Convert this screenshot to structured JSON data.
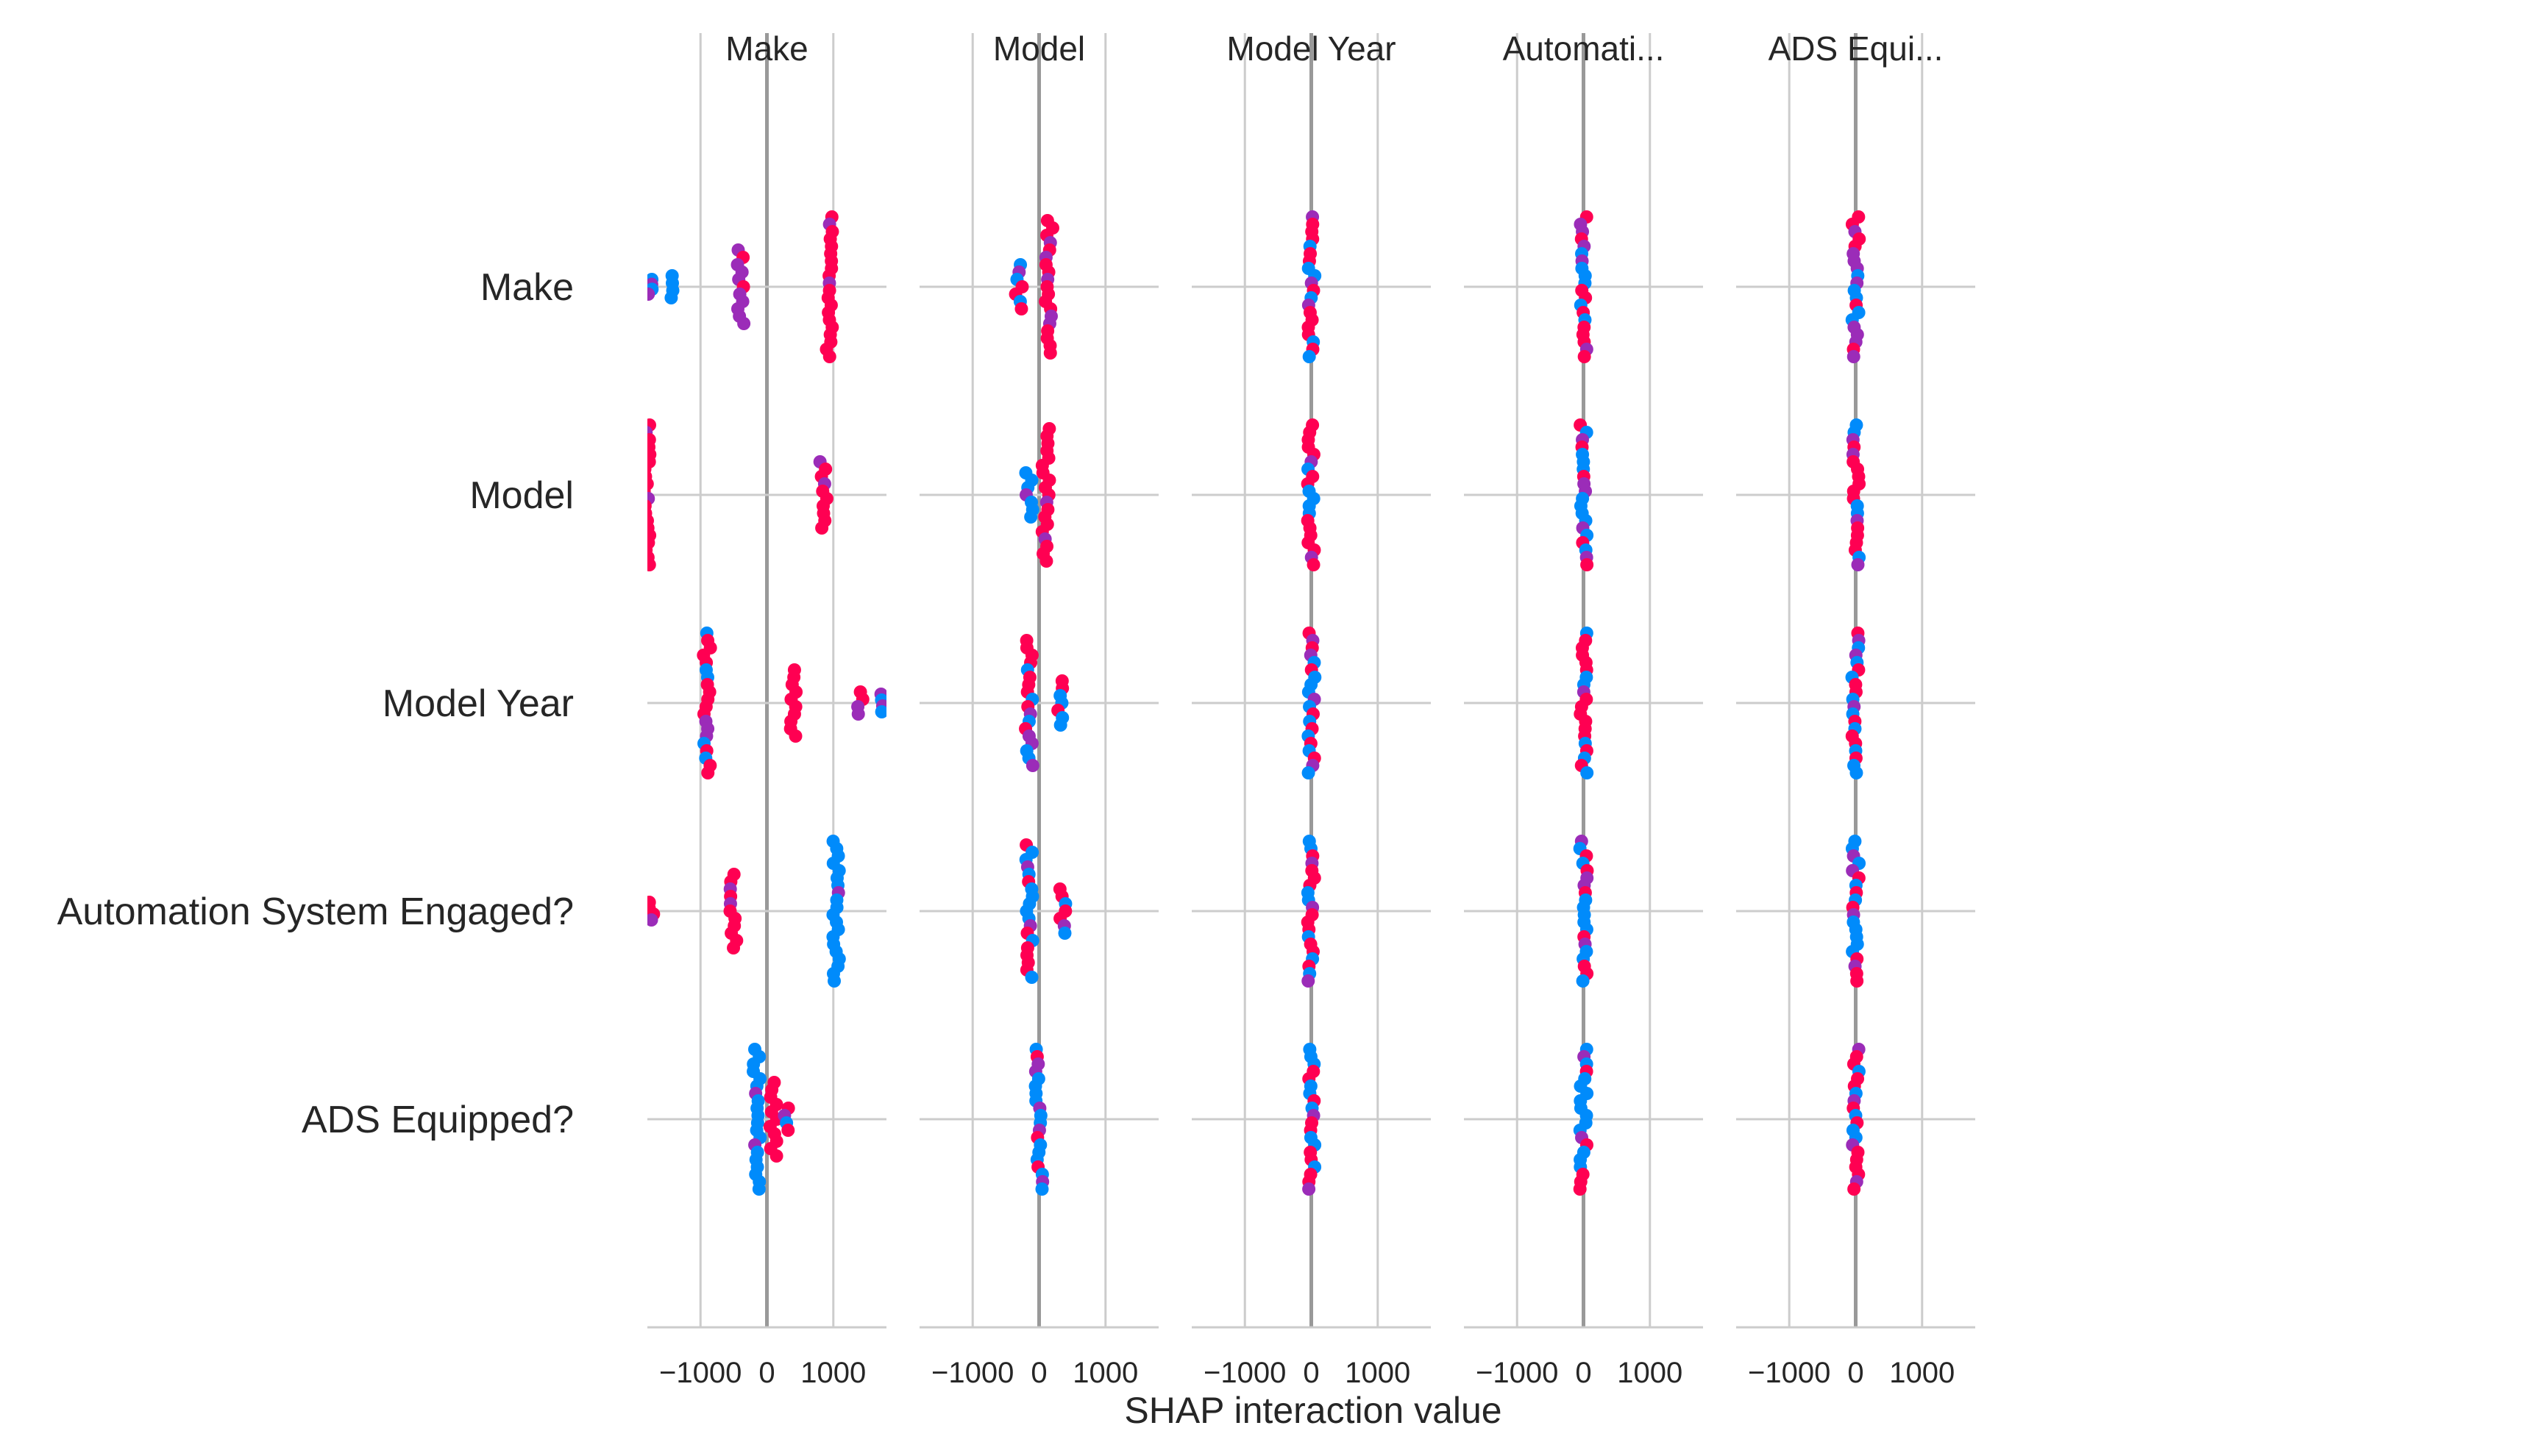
{
  "chart_data": {
    "type": "scatter",
    "subtype": "shap-interaction-summary",
    "title": "",
    "xlabel": "SHAP interaction value",
    "ylabel": "",
    "xlim": [
      -1800,
      1800
    ],
    "xticks": [
      -1000,
      0,
      1000
    ],
    "xtick_labels": [
      "−1000",
      "0",
      "1000"
    ],
    "grid": true,
    "legend": "none",
    "features": [
      "Make",
      "Model",
      "Model Year",
      "Automation System Engaged?",
      "ADS Equipped?"
    ],
    "column_titles": [
      "Make",
      "Model",
      "Model Year",
      "Automati...",
      "ADS Equi..."
    ],
    "colors": {
      "high": "#ff0052",
      "mid": "#9b2cb8",
      "low": "#008bfb",
      "grid": "#cccccc",
      "zero_line": "#999999"
    },
    "clusters": [
      {
        "row": 0,
        "col": 0,
        "points": [
          {
            "x": -1750,
            "spread": 0.1,
            "color": "low"
          },
          {
            "x": -1450,
            "spread": 0.15,
            "color": "low"
          },
          {
            "x": -400,
            "spread": 0.5,
            "color": "mid"
          },
          {
            "x": 950,
            "spread": 0.95,
            "color": "high"
          }
        ]
      },
      {
        "row": 0,
        "col": 1,
        "points": [
          {
            "x": -300,
            "spread": 0.3,
            "color": "mixed-low"
          },
          {
            "x": 150,
            "spread": 0.9,
            "color": "high"
          }
        ]
      },
      {
        "row": 0,
        "col": 2,
        "points": [
          {
            "x": 0,
            "spread": 0.95,
            "color": "mixed"
          }
        ]
      },
      {
        "row": 0,
        "col": 3,
        "points": [
          {
            "x": 0,
            "spread": 0.95,
            "color": "mixed"
          }
        ]
      },
      {
        "row": 0,
        "col": 4,
        "points": [
          {
            "x": 0,
            "spread": 0.95,
            "color": "mixed"
          }
        ]
      },
      {
        "row": 1,
        "col": 0,
        "points": [
          {
            "x": -1800,
            "spread": 0.95,
            "color": "high"
          },
          {
            "x": 850,
            "spread": 0.45,
            "color": "high"
          }
        ]
      },
      {
        "row": 1,
        "col": 1,
        "points": [
          {
            "x": -150,
            "spread": 0.3,
            "color": "low"
          },
          {
            "x": 100,
            "spread": 0.9,
            "color": "high"
          }
        ]
      },
      {
        "row": 1,
        "col": 2,
        "points": [
          {
            "x": 0,
            "spread": 0.95,
            "color": "mixed"
          }
        ]
      },
      {
        "row": 1,
        "col": 3,
        "points": [
          {
            "x": 0,
            "spread": 0.95,
            "color": "mixed"
          }
        ]
      },
      {
        "row": 1,
        "col": 4,
        "points": [
          {
            "x": 0,
            "spread": 0.95,
            "color": "mixed"
          }
        ]
      },
      {
        "row": 2,
        "col": 0,
        "points": [
          {
            "x": -900,
            "spread": 0.95,
            "color": "mixed"
          },
          {
            "x": 400,
            "spread": 0.45,
            "color": "high"
          },
          {
            "x": 1400,
            "spread": 0.15,
            "color": "high"
          },
          {
            "x": 1700,
            "spread": 0.12,
            "color": "low"
          }
        ]
      },
      {
        "row": 2,
        "col": 1,
        "points": [
          {
            "x": -150,
            "spread": 0.85,
            "color": "mixed"
          },
          {
            "x": 300,
            "spread": 0.3,
            "color": "mixed"
          }
        ]
      },
      {
        "row": 2,
        "col": 2,
        "points": [
          {
            "x": 0,
            "spread": 0.95,
            "color": "mixed"
          }
        ]
      },
      {
        "row": 2,
        "col": 3,
        "points": [
          {
            "x": 0,
            "spread": 0.95,
            "color": "mixed"
          }
        ]
      },
      {
        "row": 2,
        "col": 4,
        "points": [
          {
            "x": 0,
            "spread": 0.95,
            "color": "mixed"
          }
        ]
      },
      {
        "row": 3,
        "col": 0,
        "points": [
          {
            "x": -1750,
            "spread": 0.12,
            "color": "high"
          },
          {
            "x": -500,
            "spread": 0.5,
            "color": "high"
          },
          {
            "x": 1050,
            "spread": 0.95,
            "color": "low"
          }
        ]
      },
      {
        "row": 3,
        "col": 1,
        "points": [
          {
            "x": -150,
            "spread": 0.9,
            "color": "mixed-low"
          },
          {
            "x": 350,
            "spread": 0.3,
            "color": "mixed"
          }
        ]
      },
      {
        "row": 3,
        "col": 2,
        "points": [
          {
            "x": 0,
            "spread": 0.95,
            "color": "mixed"
          }
        ]
      },
      {
        "row": 3,
        "col": 3,
        "points": [
          {
            "x": 0,
            "spread": 0.95,
            "color": "mixed-low"
          }
        ]
      },
      {
        "row": 3,
        "col": 4,
        "points": [
          {
            "x": 0,
            "spread": 0.95,
            "color": "mixed"
          }
        ]
      },
      {
        "row": 4,
        "col": 0,
        "points": [
          {
            "x": -150,
            "spread": 0.95,
            "color": "low"
          },
          {
            "x": 100,
            "spread": 0.5,
            "color": "high"
          },
          {
            "x": 300,
            "spread": 0.15,
            "color": "mixed"
          }
        ]
      },
      {
        "row": 4,
        "col": 1,
        "points": [
          {
            "x": 0,
            "spread": 0.95,
            "color": "mixed-low"
          }
        ]
      },
      {
        "row": 4,
        "col": 2,
        "points": [
          {
            "x": 0,
            "spread": 0.95,
            "color": "mixed"
          }
        ]
      },
      {
        "row": 4,
        "col": 3,
        "points": [
          {
            "x": 0,
            "spread": 0.95,
            "color": "mixed-low"
          }
        ]
      },
      {
        "row": 4,
        "col": 4,
        "points": [
          {
            "x": 0,
            "spread": 0.95,
            "color": "mixed"
          }
        ]
      }
    ]
  }
}
